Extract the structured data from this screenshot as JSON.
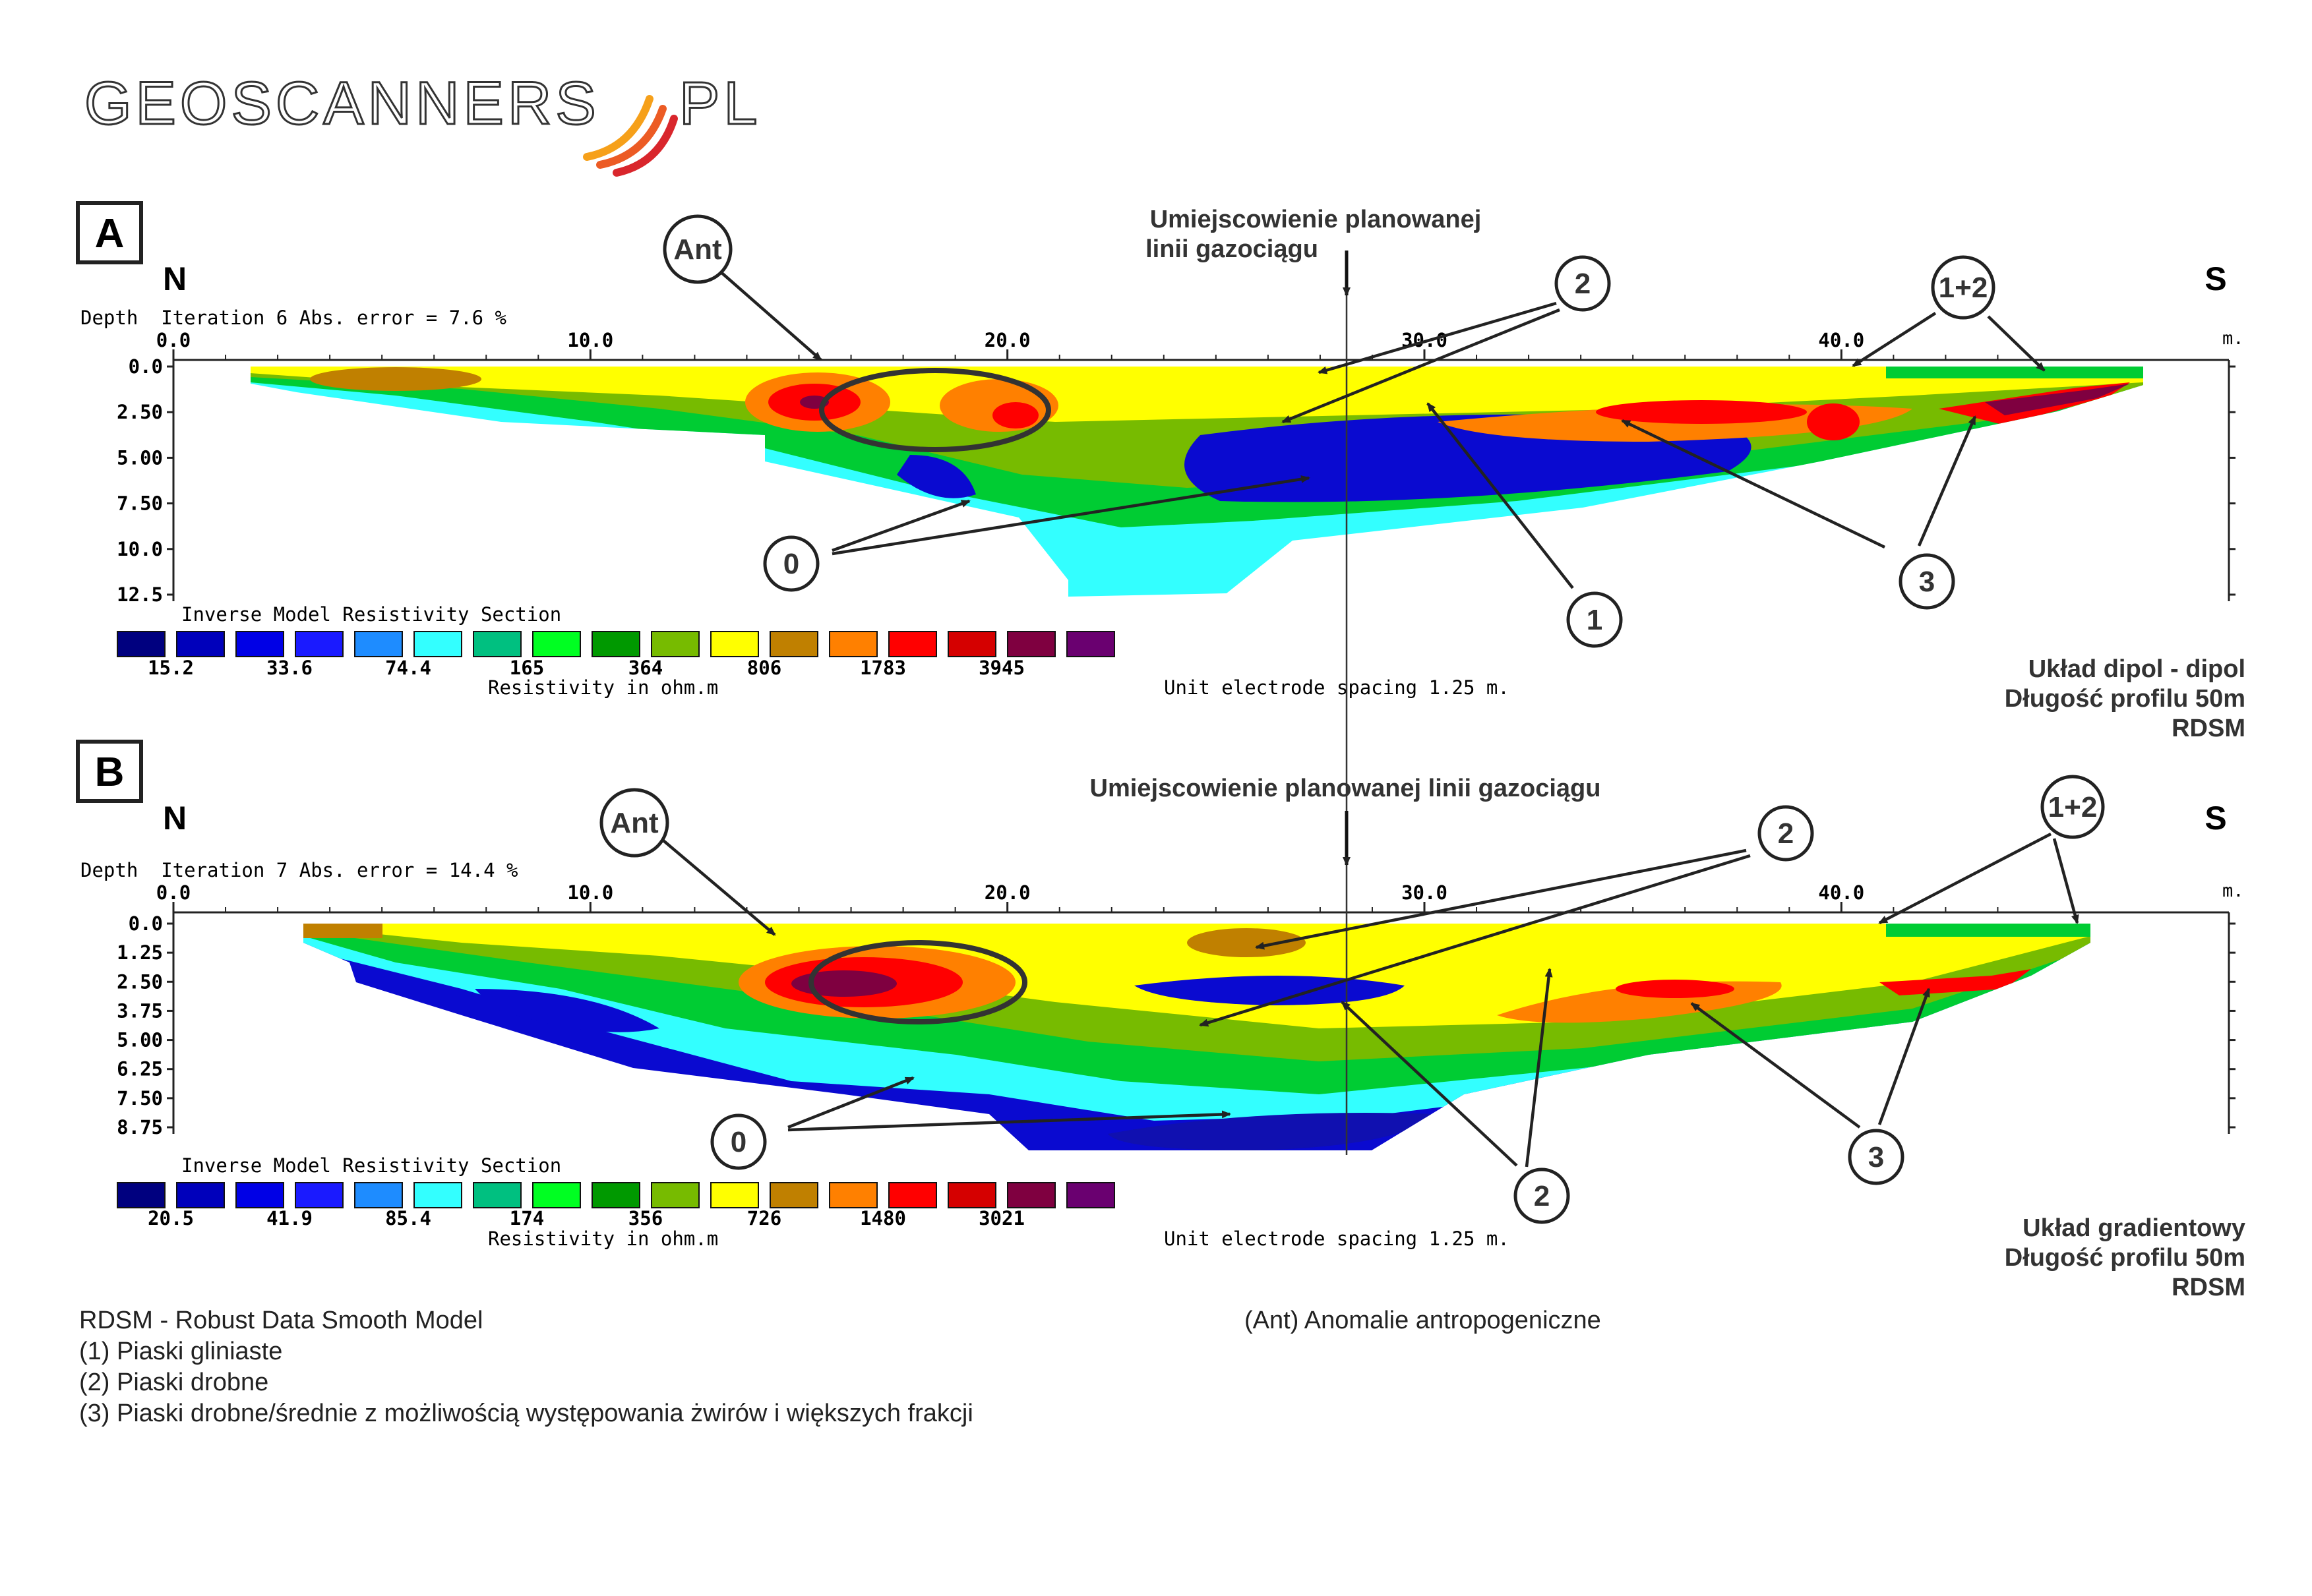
{
  "logo": {
    "text_left": "GEOSCANNERS",
    "text_right": "PL",
    "arc_colors": [
      "#f6a01a",
      "#ec5b24",
      "#d9262c"
    ]
  },
  "markers": {
    "ant": "Ant",
    "one_two": "1+2",
    "zero": "0",
    "one": "1",
    "two": "2",
    "three": "3"
  },
  "directions": {
    "north": "N",
    "south": "S"
  },
  "pipeline": {
    "label_a_line1": "Umiejscowienie planowanej",
    "label_a_line2": "linii gazociągu",
    "label_b": "Umiejscowienie planowanej linii gazociągu"
  },
  "panels": [
    {
      "id": "A",
      "letter": "A",
      "header": "Depth  Iteration 6 Abs. error = 7.6 %",
      "section_title": "Inverse Model Resistivity Section",
      "resistivity_unit": "Resistivity in ohm.m",
      "spacing": "Unit electrode spacing 1.25 m.",
      "x_unit": "m.",
      "x_ticks": [
        "0.0",
        "10.0",
        "20.0",
        "30.0",
        "40.0"
      ],
      "depth_ticks": [
        "0.0",
        "2.50",
        "5.00",
        "7.50",
        "10.0",
        "12.5"
      ],
      "legend_values": [
        "15.2",
        "33.6",
        "74.4",
        "165",
        "364",
        "806",
        "1783",
        "3945"
      ],
      "method": [
        "Układ dipol - dipol",
        "Długość profilu 50m",
        "RDSM"
      ]
    },
    {
      "id": "B",
      "letter": "B",
      "header": "Depth  Iteration 7 Abs. error = 14.4 %",
      "section_title": "Inverse Model Resistivity Section",
      "resistivity_unit": "Resistivity in ohm.m",
      "spacing": "Unit electrode spacing 1.25 m.",
      "x_unit": "m.",
      "x_ticks": [
        "0.0",
        "10.0",
        "20.0",
        "30.0",
        "40.0"
      ],
      "depth_ticks": [
        "0.0",
        "1.25",
        "2.50",
        "3.75",
        "5.00",
        "6.25",
        "7.50",
        "8.75"
      ],
      "legend_values": [
        "20.5",
        "41.9",
        "85.4",
        "174",
        "356",
        "726",
        "1480",
        "3021"
      ],
      "method": [
        "Układ gradientowy",
        "Długość profilu 50m",
        "RDSM"
      ]
    }
  ],
  "legend_colors": [
    "#00007f",
    "#0000bb",
    "#0000e6",
    "#1a1aff",
    "#1e8cff",
    "#33ffff",
    "#00c080",
    "#00ff22",
    "#009900",
    "#77bb00",
    "#ffff00",
    "#c08000",
    "#ff8000",
    "#ff0000",
    "#d50000",
    "#7f0040",
    "#6a0070"
  ],
  "colors": {
    "deep_blue": "#0a0ad0",
    "cyan": "#33ffff",
    "teal": "#00c080",
    "green": "#00cc33",
    "lime": "#77bb00",
    "yellow": "#ffff00",
    "brown": "#c08000",
    "orange": "#ff8000",
    "red": "#ff0000",
    "purple": "#7f0040"
  },
  "footer": {
    "left": [
      "RDSM - Robust Data Smooth Model",
      "(1) Piaski gliniaste",
      "(2) Piaski drobne",
      "(3) Piaski drobne/średnie z możliwością występowania żwirów i większych frakcji"
    ],
    "right": "(Ant) Anomalie antropogeniczne"
  },
  "chart_data": [
    {
      "type": "heatmap",
      "title": "Inverse Model Resistivity Section",
      "x_ticks": [
        0,
        10,
        20,
        30,
        40
      ],
      "depth_ticks": [
        0.0,
        2.5,
        5.0,
        7.5,
        10.0,
        12.5
      ],
      "color_scale_ohm_m": [
        15.2,
        33.6,
        74.4,
        165,
        364,
        806,
        1783,
        3945
      ]
    },
    {
      "type": "heatmap",
      "title": "Inverse Model Resistivity Section",
      "x_ticks": [
        0,
        10,
        20,
        30,
        40
      ],
      "depth_ticks": [
        0.0,
        1.25,
        2.5,
        3.75,
        5.0,
        6.25,
        7.5,
        8.75
      ],
      "color_scale_ohm_m": [
        20.5,
        41.9,
        85.4,
        174,
        356,
        726,
        1480,
        3021
      ]
    }
  ]
}
